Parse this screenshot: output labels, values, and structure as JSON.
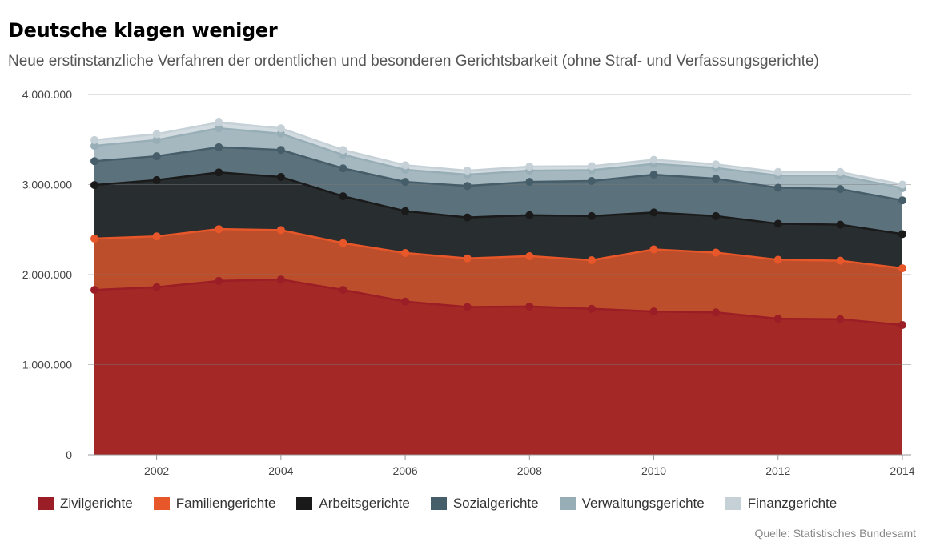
{
  "header": {
    "title": "Deutsche klagen weniger",
    "subtitle": "Neue erstinstanzliche Verfahren der ordentlichen und besonderen Gerichtsbarkeit (ohne Straf- und Verfassungsgerichte)"
  },
  "source": "Quelle: Statistisches Bundesamt",
  "chart_data": {
    "type": "area",
    "stacked": true,
    "x": [
      2001,
      2002,
      2003,
      2004,
      2005,
      2006,
      2007,
      2008,
      2009,
      2010,
      2011,
      2012,
      2013,
      2014
    ],
    "x_ticks": [
      "2002",
      "2004",
      "2006",
      "2008",
      "2010",
      "2012",
      "2014"
    ],
    "y_ticks": [
      "0",
      "1.000.000",
      "2.000.000",
      "3.000.000",
      "4.000.000"
    ],
    "ylim": [
      0,
      4000000
    ],
    "grid": true,
    "legend_position": "bottom",
    "series": [
      {
        "name": "Zivilgerichte",
        "color": "#9b1d25",
        "values": [
          1830000,
          1860000,
          1930000,
          1945000,
          1830000,
          1700000,
          1640000,
          1645000,
          1620000,
          1590000,
          1580000,
          1510000,
          1505000,
          1440000
        ]
      },
      {
        "name": "Familiengerichte",
        "color": "#e8572a",
        "values": [
          570000,
          565000,
          575000,
          550000,
          520000,
          540000,
          540000,
          560000,
          540000,
          690000,
          665000,
          655000,
          650000,
          630000
        ]
      },
      {
        "name": "Arbeitsgerichte",
        "color": "#1a1a1a",
        "values": [
          595000,
          625000,
          630000,
          590000,
          520000,
          465000,
          455000,
          455000,
          490000,
          410000,
          405000,
          400000,
          400000,
          380000
        ]
      },
      {
        "name": "Sozialgerichte",
        "color": "#465e69",
        "values": [
          265000,
          265000,
          280000,
          300000,
          310000,
          325000,
          350000,
          370000,
          390000,
          420000,
          415000,
          400000,
          395000,
          375000
        ]
      },
      {
        "name": "Verwaltungsgerichte",
        "color": "#98aeb6",
        "values": [
          170000,
          180000,
          210000,
          180000,
          150000,
          135000,
          125000,
          125000,
          120000,
          120000,
          120000,
          135000,
          150000,
          135000
        ]
      },
      {
        "name": "Finanzgerichte",
        "color": "#c5d1d7",
        "values": [
          65000,
          65000,
          65000,
          60000,
          55000,
          50000,
          45000,
          45000,
          45000,
          45000,
          40000,
          40000,
          40000,
          40000
        ]
      }
    ]
  }
}
